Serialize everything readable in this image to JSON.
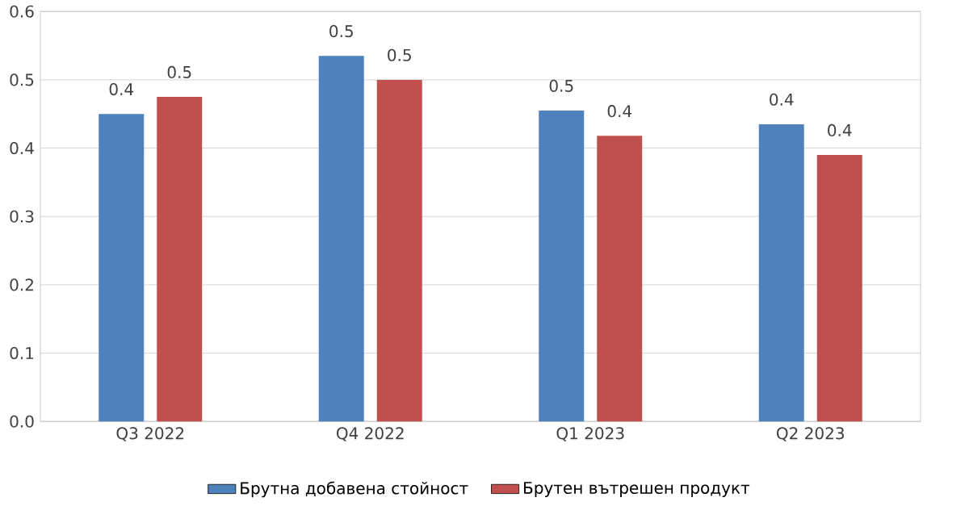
{
  "chart_data": {
    "type": "bar",
    "categories": [
      "Q3 2022",
      "Q4 2022",
      "Q1 2023",
      "Q2 2023"
    ],
    "series": [
      {
        "name": "Брутна добавена стойност",
        "color": "#4f81bd",
        "values": [
          0.45,
          0.535,
          0.455,
          0.435
        ],
        "value_labels": [
          "0.4",
          "0.5",
          "0.5",
          "0.4"
        ]
      },
      {
        "name": "Брутен вътрешен продукт",
        "color": "#c0504d",
        "values": [
          0.475,
          0.5,
          0.418,
          0.39
        ],
        "value_labels": [
          "0.5",
          "0.5",
          "0.4",
          "0.4"
        ]
      }
    ],
    "ylim": [
      0,
      0.6
    ],
    "yticks": [
      {
        "value": 0,
        "label": "0.0"
      },
      0.1,
      0.2,
      0.3,
      0.4,
      0.5,
      0.6
    ],
    "grid": "y",
    "legend": "bottom"
  }
}
